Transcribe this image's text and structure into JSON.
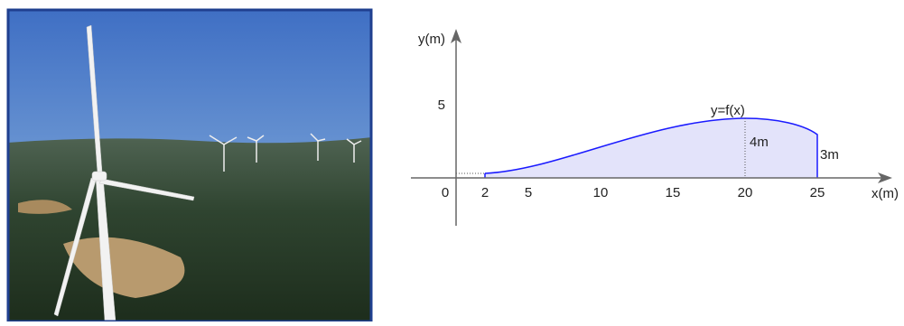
{
  "graph": {
    "y_axis_label": "y(m)",
    "x_axis_label": "x(m)",
    "curve_label": "y=f(x)",
    "x_ticks": [
      0,
      2,
      5,
      10,
      15,
      20,
      25
    ],
    "y_ticks": [
      5
    ],
    "height_label_a": "4m",
    "height_label_b": "3m"
  }
}
